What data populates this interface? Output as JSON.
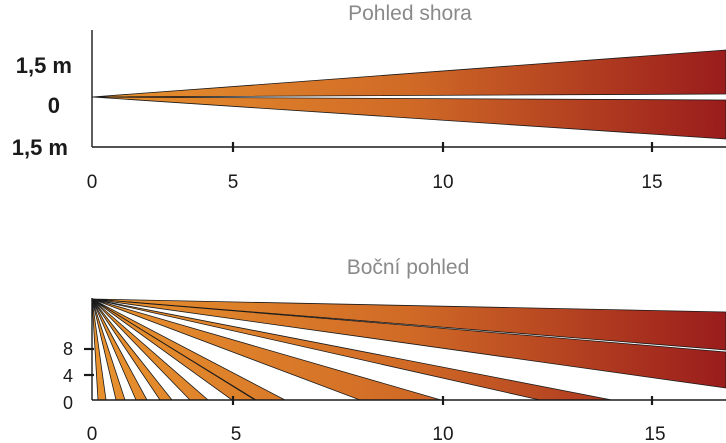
{
  "top_view": {
    "title": "Pohled shora",
    "y_labels": [
      "1,5 m",
      "0",
      "1,5 m"
    ],
    "x_ticks": [
      "0",
      "5",
      "10",
      "15"
    ],
    "beams": 2
  },
  "side_view": {
    "title": "Boční pohled",
    "y_labels": [
      "8",
      "4",
      "0"
    ],
    "x_ticks": [
      "0",
      "5",
      "10",
      "15"
    ],
    "beams": 11
  },
  "colors": {
    "beam_start": "#e8922e",
    "beam_end": "#9a1c1c",
    "axis": "#1a1a1a",
    "title": "#8a8a8a"
  }
}
